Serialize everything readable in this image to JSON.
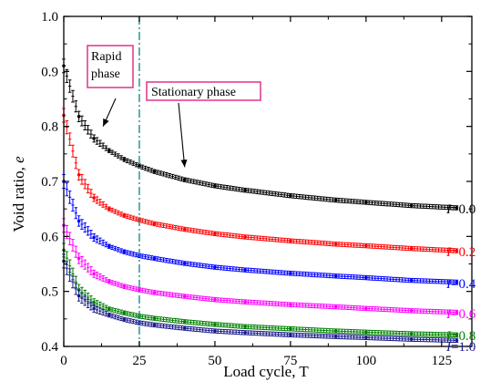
{
  "chart_data": {
    "type": "scatter",
    "title": "",
    "xlabel": "Load cycle, T",
    "ylabel": {
      "text": "Void ratio, ",
      "var": "e"
    },
    "xlim": [
      0,
      135
    ],
    "ylim": [
      0.4,
      1.0
    ],
    "xticks": [
      0,
      25,
      50,
      75,
      100,
      125
    ],
    "xtick_labels": [
      "0",
      "25",
      "50",
      "75",
      "100",
      "125"
    ],
    "yticks": [
      0.4,
      0.5,
      0.6,
      0.7,
      0.8,
      0.9,
      1.0
    ],
    "ytick_labels": [
      "0.4",
      "0.5",
      "0.6",
      "0.7",
      "0.8",
      "0.9",
      "1.0"
    ],
    "grid": false,
    "reference_line": {
      "x": 25,
      "style": "dash-dot",
      "color": "#1a8f8f"
    },
    "annotations": [
      {
        "text_lines": [
          "Rapid",
          "phase"
        ],
        "box_color": "#e0338a",
        "arrow_to": [
          13,
          0.8
        ]
      },
      {
        "text_lines": [
          "Stationary phase"
        ],
        "box_color": "#e0338a",
        "arrow_to": [
          40,
          0.726
        ]
      }
    ],
    "x": [
      0,
      5,
      10,
      15,
      20,
      25,
      30,
      40,
      50,
      60,
      75,
      90,
      100,
      115,
      130
    ],
    "series": [
      {
        "label_var": "I",
        "label_value": "=0.0",
        "color": "#000000",
        "values": [
          0.91,
          0.818,
          0.778,
          0.756,
          0.74,
          0.728,
          0.718,
          0.703,
          0.692,
          0.684,
          0.674,
          0.666,
          0.662,
          0.656,
          0.652
        ]
      },
      {
        "label_var": "I",
        "label_value": "=0.2",
        "color": "#ff0000",
        "values": [
          0.82,
          0.712,
          0.67,
          0.65,
          0.638,
          0.63,
          0.623,
          0.613,
          0.605,
          0.599,
          0.592,
          0.586,
          0.583,
          0.578,
          0.574
        ]
      },
      {
        "label_var": "I",
        "label_value": "=0.4",
        "color": "#0000ff",
        "values": [
          0.7,
          0.628,
          0.598,
          0.582,
          0.572,
          0.565,
          0.56,
          0.551,
          0.544,
          0.539,
          0.533,
          0.528,
          0.525,
          0.52,
          0.517
        ]
      },
      {
        "label_var": "I",
        "label_value": "=0.6",
        "color": "#ff00ff",
        "values": [
          0.62,
          0.56,
          0.532,
          0.518,
          0.509,
          0.503,
          0.498,
          0.491,
          0.485,
          0.481,
          0.476,
          0.472,
          0.469,
          0.465,
          0.462
        ]
      },
      {
        "label_var": "I",
        "label_value": "=0.8",
        "color": "#008000",
        "values": [
          0.575,
          0.503,
          0.48,
          0.468,
          0.461,
          0.455,
          0.451,
          0.445,
          0.44,
          0.436,
          0.432,
          0.428,
          0.426,
          0.423,
          0.421
        ]
      },
      {
        "label_var": "I",
        "label_value": "=1.0",
        "color": "#1a1a8c",
        "values": [
          0.555,
          0.492,
          0.469,
          0.457,
          0.449,
          0.443,
          0.439,
          0.433,
          0.428,
          0.425,
          0.421,
          0.418,
          0.416,
          0.413,
          0.411
        ]
      }
    ]
  }
}
